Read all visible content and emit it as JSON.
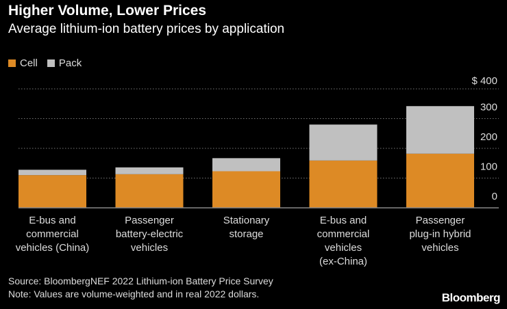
{
  "title": "Higher Volume, Lower Prices",
  "subtitle": "Average lithium-ion battery prices by application",
  "source": "Source: BloombergNEF 2022 Lithium-ion Battery Price Survey",
  "note": "Note: Values are volume-weighted and in real 2022 dollars.",
  "logo": "Bloomberg",
  "chart_data": {
    "type": "bar",
    "stacked": true,
    "categories": [
      [
        "E-bus and",
        "commercial",
        "vehicles (China)"
      ],
      [
        "Passenger",
        "battery-electric",
        "vehicles"
      ],
      [
        "Stationary",
        "storage"
      ],
      [
        "E-bus and",
        "commercial",
        "vehicles",
        "(ex-China)"
      ],
      [
        "Passenger",
        "plug-in hybrid",
        "vehicles"
      ]
    ],
    "series": [
      {
        "name": "Cell",
        "color": "#dd8a25",
        "values": [
          110,
          113,
          123,
          159,
          182
        ]
      },
      {
        "name": "Pack",
        "color": "#c0c0c0",
        "values": [
          18,
          23,
          44,
          121,
          160
        ]
      }
    ],
    "ylim": [
      0,
      400
    ],
    "yticks": [
      "0",
      "100",
      "200",
      "300",
      "$ 400"
    ],
    "ytick_values": [
      0,
      100,
      200,
      300,
      400
    ],
    "y_axis_side": "right",
    "grid": "dotted horizontal",
    "legend": "top-left"
  }
}
